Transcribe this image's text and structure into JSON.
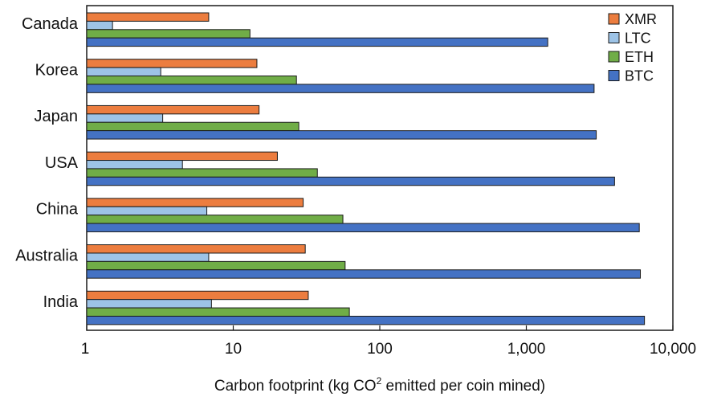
{
  "chart_data": {
    "type": "bar",
    "orientation": "horizontal",
    "x_scale": "log",
    "xlim": [
      1,
      10000
    ],
    "xticks": [
      1,
      10,
      100,
      1000,
      10000
    ],
    "xtick_labels": [
      "1",
      "10",
      "100",
      "1,000",
      "10,000"
    ],
    "xlabel_prefix": "Carbon footprint (kg CO",
    "xlabel_superscript": "2",
    "xlabel_suffix": " emitted per coin mined)",
    "categories": [
      "Canada",
      "Korea",
      "Japan",
      "USA",
      "China",
      "Australia",
      "India"
    ],
    "series": [
      {
        "name": "XMR",
        "color": "#ec7d3f",
        "values": [
          6.8,
          14.5,
          15.0,
          20.0,
          30.0,
          31.0,
          32.5
        ]
      },
      {
        "name": "LTC",
        "color": "#9dc3e6",
        "values": [
          1.5,
          3.2,
          3.3,
          4.5,
          6.6,
          6.8,
          7.1
        ]
      },
      {
        "name": "ETH",
        "color": "#70ad47",
        "values": [
          13.0,
          27.0,
          28.0,
          37.5,
          56.0,
          58.0,
          62.0
        ]
      },
      {
        "name": "BTC",
        "color": "#4472c4",
        "values": [
          1400,
          2900,
          3000,
          4000,
          5900,
          6000,
          6400
        ]
      }
    ],
    "legend_position": "top-right",
    "grid": false
  }
}
